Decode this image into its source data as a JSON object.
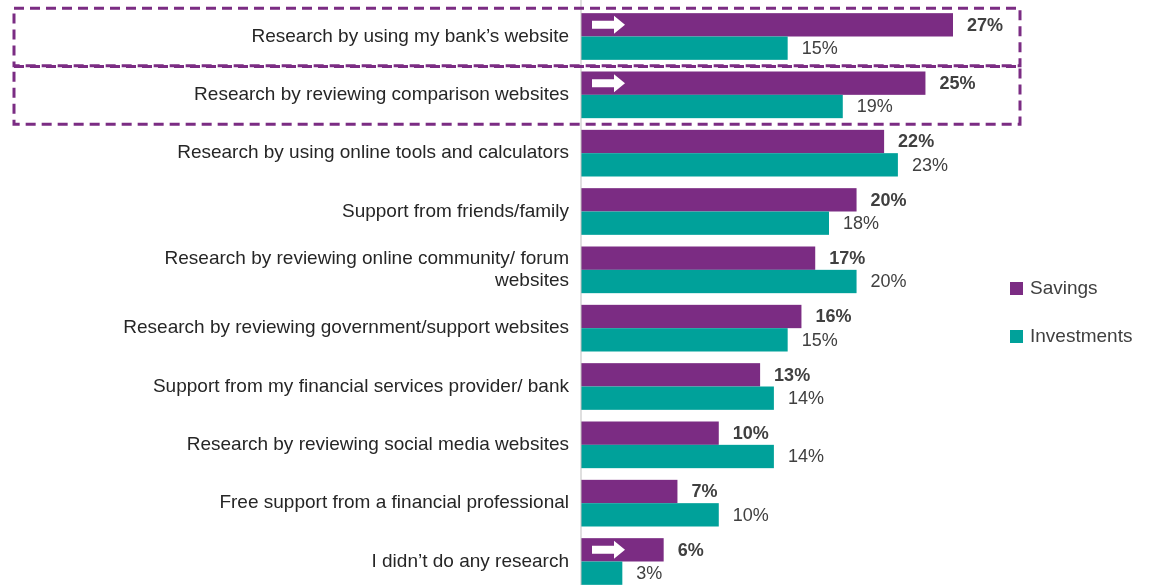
{
  "chart_data": {
    "type": "bar",
    "orientation": "horizontal",
    "categories": [
      "Research by using my bank’s website",
      "Research by reviewing comparison websites",
      "Research by using online tools and calculators",
      "Support from friends/family",
      "Research by reviewing online community/ forum websites",
      "Research by reviewing government/support websites",
      "Support from my financial services provider/ bank",
      "Research by reviewing social media websites",
      "Free support from a financial professional",
      "I didn’t do any research"
    ],
    "series": [
      {
        "name": "Savings",
        "color": "#7b2c83",
        "values": [
          27,
          25,
          22,
          20,
          17,
          16,
          13,
          10,
          7,
          6
        ],
        "value_labels": [
          "27%",
          "25%",
          "22%",
          "20%",
          "17%",
          "16%",
          "13%",
          "10%",
          "7%",
          "6%"
        ]
      },
      {
        "name": "Investments",
        "color": "#00a19a",
        "values": [
          15,
          19,
          23,
          18,
          20,
          15,
          14,
          14,
          10,
          3
        ],
        "value_labels": [
          "15%",
          "19%",
          "23%",
          "18%",
          "20%",
          "15%",
          "14%",
          "14%",
          "10%",
          "3%"
        ]
      }
    ],
    "legend": "right"
  }
}
